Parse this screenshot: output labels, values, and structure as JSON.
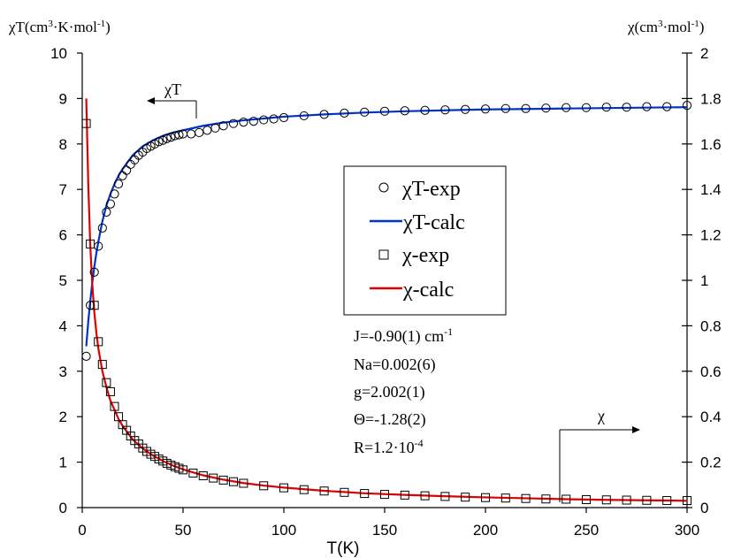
{
  "chart_data": {
    "type": "scatter",
    "xlabel": "T(K)",
    "ylabel_left_prefix": "χT(cm",
    "ylabel_left_sup1": "3",
    "ylabel_left_mid": "·K·mol",
    "ylabel_left_sup2": "-1",
    "ylabel_left_end": ")",
    "ylabel_right_prefix": "χ(cm",
    "ylabel_right_sup1": "3",
    "ylabel_right_mid": "·mol",
    "ylabel_right_sup2": "-1",
    "ylabel_right_end": ")",
    "xlim": [
      0,
      300
    ],
    "ylim_left": [
      0,
      10
    ],
    "ylim_right": [
      0,
      2
    ],
    "x_ticks": [
      "0",
      "50",
      "100",
      "150",
      "200",
      "250",
      "300"
    ],
    "y_left_ticks": [
      "0",
      "1",
      "2",
      "3",
      "4",
      "5",
      "6",
      "7",
      "8",
      "9",
      "10"
    ],
    "y_right_ticks": [
      "0",
      "0.2",
      "0.4",
      "0.6",
      "0.8",
      "1",
      "1.2",
      "1.4",
      "1.6",
      "1.8",
      "2"
    ],
    "grid": false,
    "legend_position": "center-right",
    "legend": [
      {
        "label": "χT-exp",
        "marker": "circle",
        "color": "#000000"
      },
      {
        "label": "χT-calc",
        "marker": "line",
        "color": "#0033cc"
      },
      {
        "label": "χ-exp",
        "marker": "square",
        "color": "#000000"
      },
      {
        "label": "χ-calc",
        "marker": "line",
        "color": "#e00000"
      }
    ],
    "annotations": {
      "chiT_arrow_label": "χT",
      "chi_arrow_label": "χ",
      "params": [
        {
          "text": "J=-0.90(1) cm",
          "sup": "-1"
        },
        {
          "text": "Na=0.002(6)",
          "sup": ""
        },
        {
          "text": "g=2.002(1)",
          "sup": ""
        },
        {
          "text": "Θ=-1.28(2)",
          "sup": ""
        },
        {
          "text": "R=1.2·10",
          "sup": "-4"
        }
      ]
    },
    "series": [
      {
        "name": "χT-exp",
        "axis": "left",
        "x": [
          2,
          4,
          6,
          8,
          10,
          12,
          14,
          16,
          18,
          20,
          22,
          24,
          26,
          28,
          30,
          32,
          34,
          36,
          38,
          40,
          42,
          44,
          46,
          48,
          50,
          54,
          58,
          62,
          66,
          70,
          75,
          80,
          85,
          90,
          95,
          100,
          110,
          120,
          130,
          140,
          150,
          160,
          170,
          180,
          190,
          200,
          210,
          220,
          230,
          240,
          250,
          260,
          270,
          280,
          290,
          300
        ],
        "y": [
          3.33,
          4.45,
          5.18,
          5.75,
          6.15,
          6.5,
          6.68,
          6.9,
          7.12,
          7.3,
          7.42,
          7.55,
          7.65,
          7.75,
          7.82,
          7.9,
          7.95,
          8.0,
          8.05,
          8.08,
          8.12,
          8.15,
          8.18,
          8.2,
          8.22,
          8.22,
          8.25,
          8.3,
          8.35,
          8.4,
          8.45,
          8.48,
          8.5,
          8.53,
          8.55,
          8.58,
          8.62,
          8.65,
          8.68,
          8.7,
          8.72,
          8.73,
          8.74,
          8.75,
          8.76,
          8.77,
          8.78,
          8.78,
          8.79,
          8.8,
          8.8,
          8.81,
          8.81,
          8.82,
          8.82,
          8.85
        ]
      },
      {
        "name": "χT-calc",
        "axis": "left",
        "x": [
          2,
          3,
          4,
          5,
          6,
          7,
          8,
          10,
          12,
          14,
          16,
          18,
          20,
          25,
          30,
          35,
          40,
          45,
          50,
          60,
          70,
          80,
          90,
          100,
          120,
          140,
          160,
          180,
          200,
          220,
          240,
          260,
          280,
          300
        ],
        "y": [
          3.55,
          4.1,
          4.55,
          4.95,
          5.3,
          5.6,
          5.85,
          6.3,
          6.65,
          6.9,
          7.12,
          7.3,
          7.45,
          7.75,
          7.95,
          8.08,
          8.18,
          8.25,
          8.3,
          8.4,
          8.47,
          8.52,
          8.56,
          8.6,
          8.65,
          8.69,
          8.72,
          8.74,
          8.76,
          8.77,
          8.78,
          8.79,
          8.8,
          8.81
        ]
      },
      {
        "name": "χ-exp",
        "axis": "right",
        "x": [
          2,
          4,
          6,
          8,
          10,
          12,
          14,
          16,
          18,
          20,
          22,
          24,
          26,
          28,
          30,
          32,
          34,
          36,
          38,
          40,
          42,
          44,
          46,
          48,
          50,
          55,
          60,
          65,
          70,
          75,
          80,
          90,
          100,
          110,
          120,
          130,
          140,
          150,
          160,
          170,
          180,
          190,
          200,
          210,
          220,
          230,
          240,
          250,
          260,
          270,
          280,
          290,
          300
        ],
        "y": [
          1.69,
          1.16,
          0.89,
          0.73,
          0.63,
          0.55,
          0.51,
          0.445,
          0.4,
          0.365,
          0.34,
          0.315,
          0.295,
          0.28,
          0.262,
          0.247,
          0.235,
          0.225,
          0.214,
          0.205,
          0.195,
          0.187,
          0.18,
          0.173,
          0.166,
          0.152,
          0.14,
          0.13,
          0.121,
          0.114,
          0.107,
          0.096,
          0.087,
          0.079,
          0.073,
          0.067,
          0.062,
          0.058,
          0.055,
          0.052,
          0.049,
          0.046,
          0.044,
          0.042,
          0.04,
          0.038,
          0.037,
          0.035,
          0.034,
          0.033,
          0.032,
          0.031,
          0.031
        ]
      },
      {
        "name": "χ-calc",
        "axis": "right",
        "x": [
          2,
          3,
          4,
          5,
          6,
          7,
          8,
          10,
          12,
          14,
          16,
          18,
          20,
          25,
          30,
          35,
          40,
          45,
          50,
          60,
          70,
          80,
          90,
          100,
          120,
          140,
          160,
          180,
          200,
          220,
          240,
          260,
          280,
          300
        ],
        "y": [
          1.8,
          1.42,
          1.15,
          0.98,
          0.86,
          0.77,
          0.7,
          0.6,
          0.53,
          0.47,
          0.43,
          0.39,
          0.36,
          0.3,
          0.26,
          0.23,
          0.205,
          0.185,
          0.168,
          0.142,
          0.123,
          0.108,
          0.097,
          0.088,
          0.074,
          0.063,
          0.056,
          0.05,
          0.045,
          0.041,
          0.037,
          0.034,
          0.032,
          0.03
        ]
      }
    ]
  }
}
